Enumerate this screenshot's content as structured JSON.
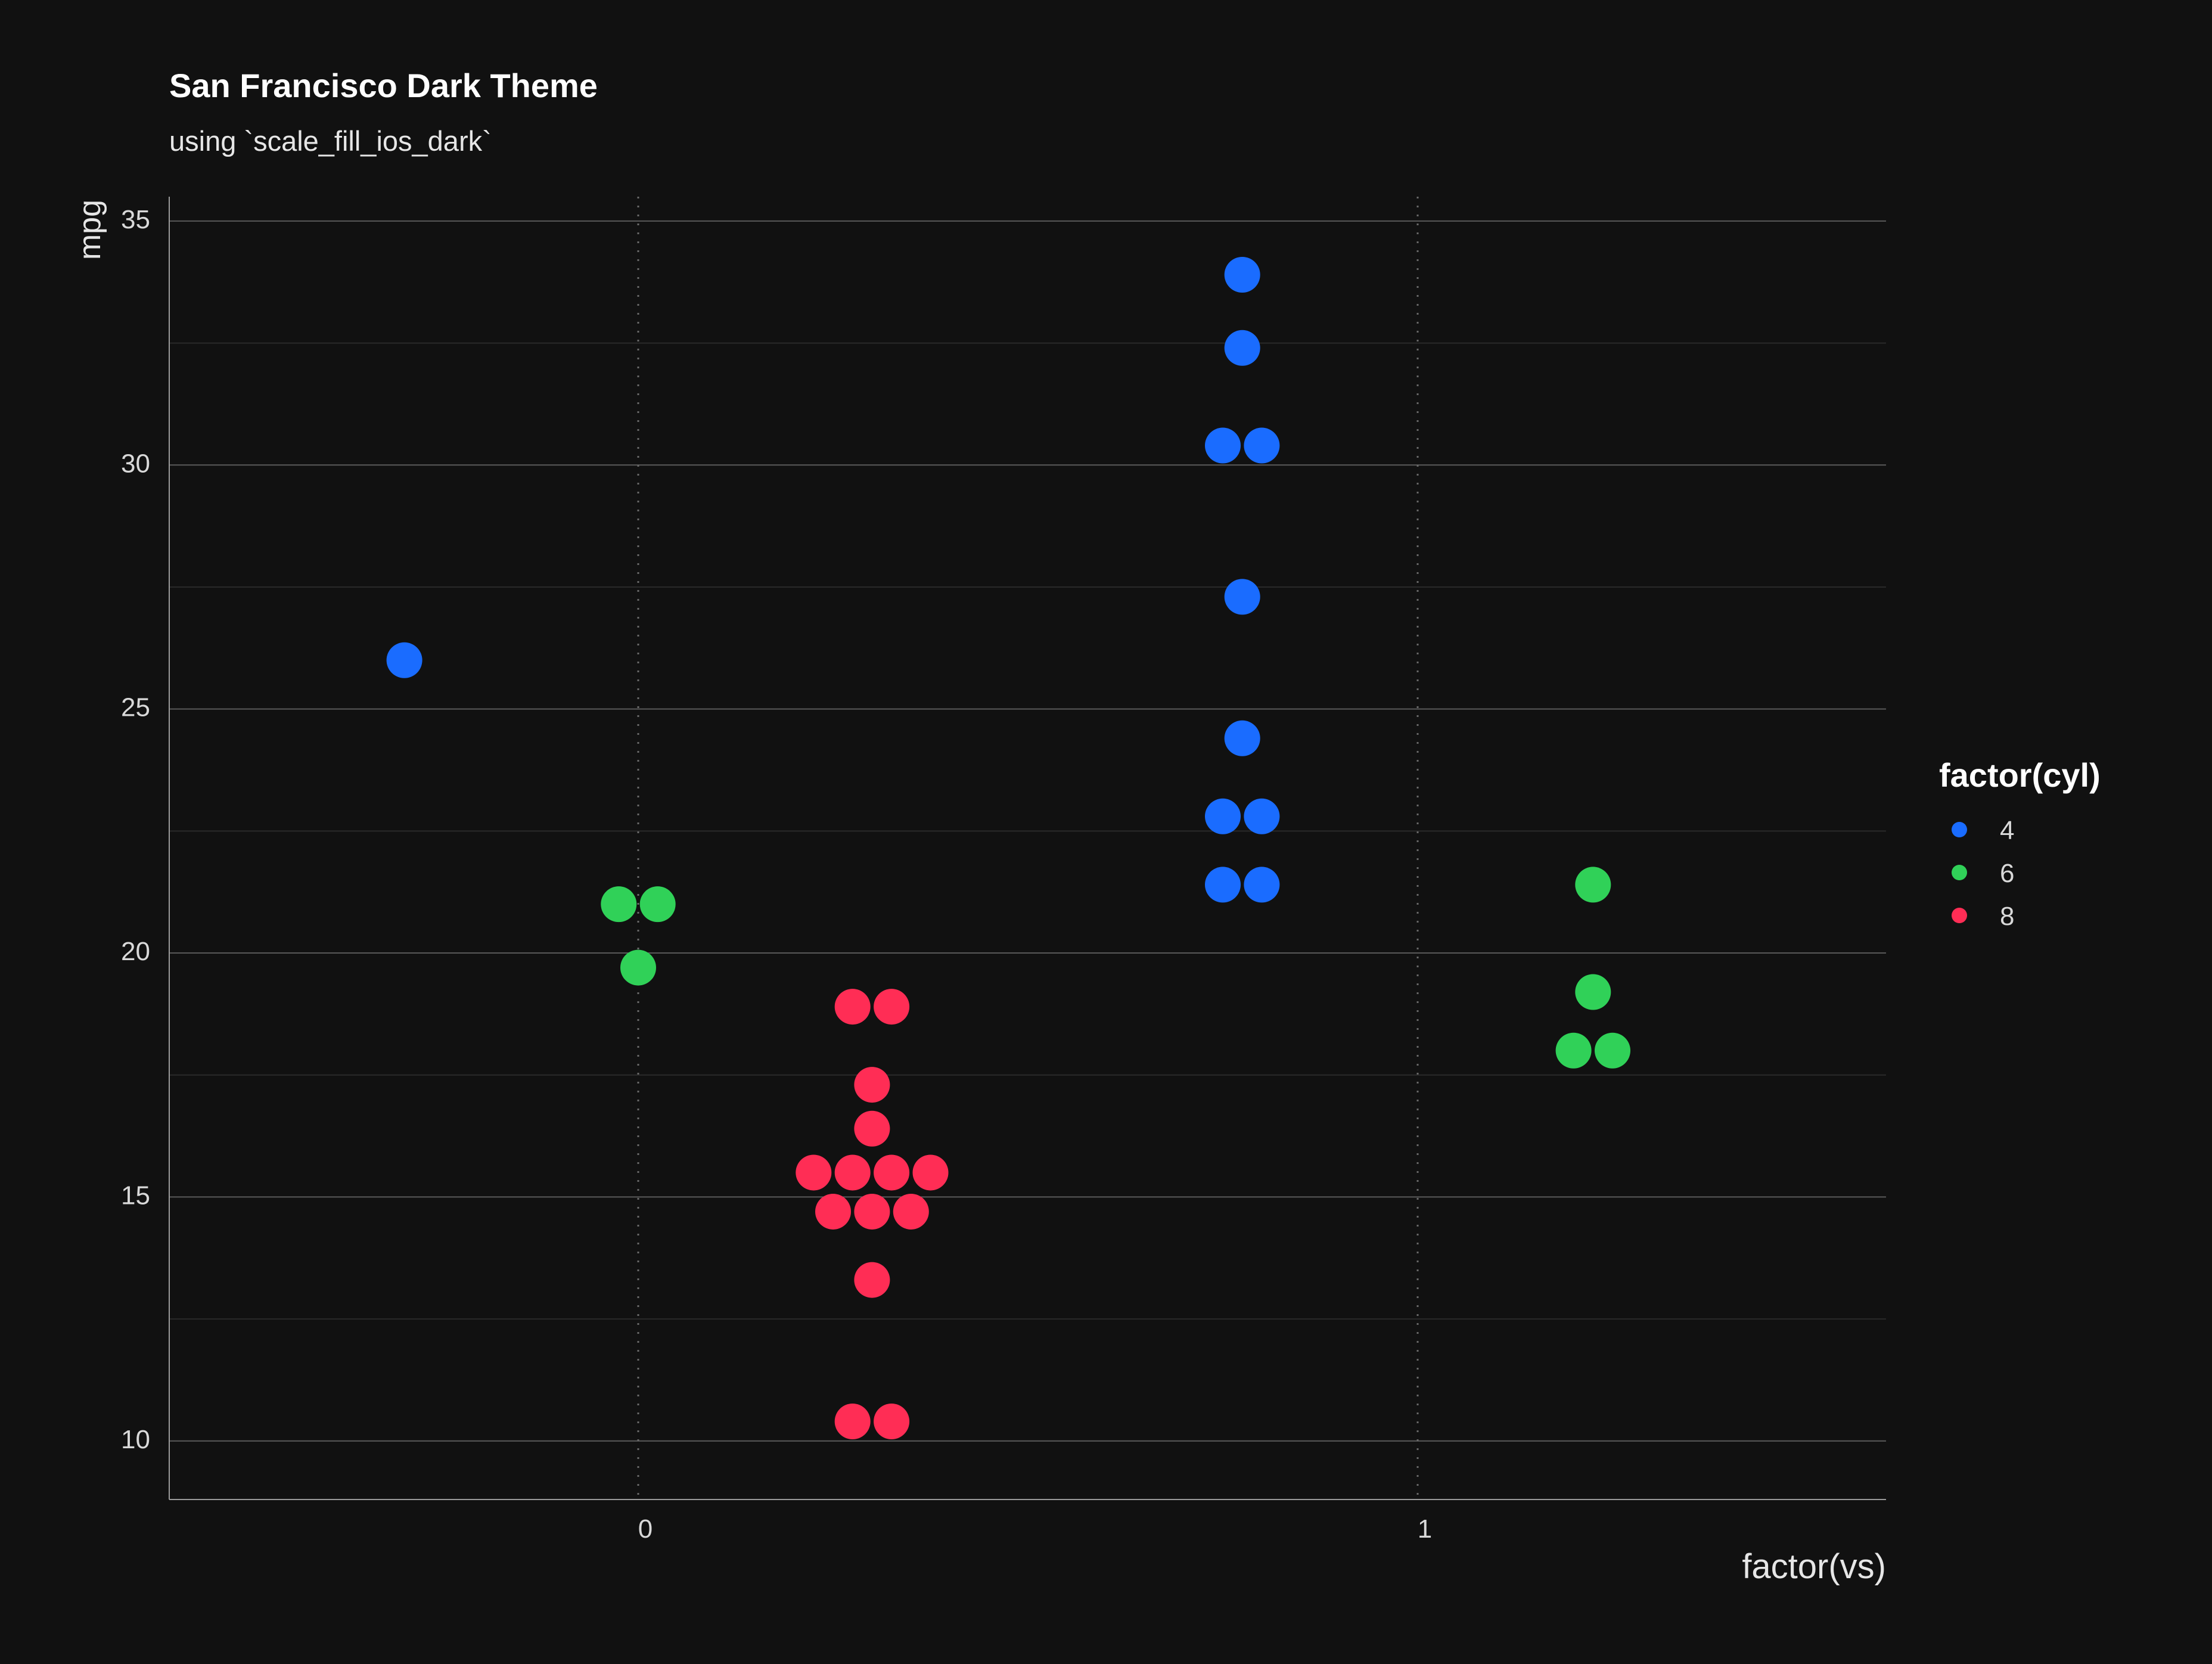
{
  "chart_data": {
    "type": "scatter",
    "title": "San Francisco Dark Theme",
    "subtitle": "using `scale_fill_ios_dark`",
    "xlabel": "factor(vs)",
    "ylabel": "mpg",
    "x_categories": [
      "0",
      "1"
    ],
    "ylim": [
      8.8,
      35.5
    ],
    "yticks": [
      10,
      15,
      20,
      25,
      30,
      35
    ],
    "y_minor_ticks": [
      12.5,
      17.5,
      22.5,
      27.5,
      32.5
    ],
    "grid": true,
    "legend": {
      "title": "factor(cyl)",
      "position": "right",
      "entries": [
        "4",
        "6",
        "8"
      ]
    },
    "colors": {
      "background": "#111111",
      "text": "#ffffff",
      "axis_text": "#d9d9d9",
      "grid_major": "#5a5a5a",
      "grid_minor": "#2a2a2a",
      "4": "#1a6cff",
      "6": "#30d158",
      "8": "#ff2d55"
    },
    "series": [
      {
        "name": "4",
        "points": [
          {
            "x": -0.3,
            "y": 26.0
          },
          {
            "x": 0.775,
            "y": 33.9
          },
          {
            "x": 0.775,
            "y": 32.4
          },
          {
            "x": 0.75,
            "y": 30.4
          },
          {
            "x": 0.8,
            "y": 30.4
          },
          {
            "x": 0.775,
            "y": 27.3
          },
          {
            "x": 0.775,
            "y": 24.4
          },
          {
            "x": 0.75,
            "y": 22.8
          },
          {
            "x": 0.8,
            "y": 22.8
          },
          {
            "x": 0.75,
            "y": 21.4
          },
          {
            "x": 0.8,
            "y": 21.4
          }
        ]
      },
      {
        "name": "6",
        "points": [
          {
            "x": -0.025,
            "y": 21.0
          },
          {
            "x": 0.025,
            "y": 21.0
          },
          {
            "x": 0.0,
            "y": 19.7
          },
          {
            "x": 1.225,
            "y": 21.4
          },
          {
            "x": 1.225,
            "y": 19.2
          },
          {
            "x": 1.2,
            "y": 18.0
          },
          {
            "x": 1.25,
            "y": 18.0
          }
        ]
      },
      {
        "name": "8",
        "points": [
          {
            "x": 0.275,
            "y": 18.9
          },
          {
            "x": 0.325,
            "y": 18.9
          },
          {
            "x": 0.3,
            "y": 17.3
          },
          {
            "x": 0.3,
            "y": 16.4
          },
          {
            "x": 0.225,
            "y": 15.5
          },
          {
            "x": 0.275,
            "y": 15.5
          },
          {
            "x": 0.325,
            "y": 15.5
          },
          {
            "x": 0.375,
            "y": 15.5
          },
          {
            "x": 0.25,
            "y": 14.7
          },
          {
            "x": 0.3,
            "y": 14.7
          },
          {
            "x": 0.35,
            "y": 14.7
          },
          {
            "x": 0.3,
            "y": 13.3
          },
          {
            "x": 0.275,
            "y": 10.4
          },
          {
            "x": 0.325,
            "y": 10.4
          }
        ]
      }
    ]
  }
}
